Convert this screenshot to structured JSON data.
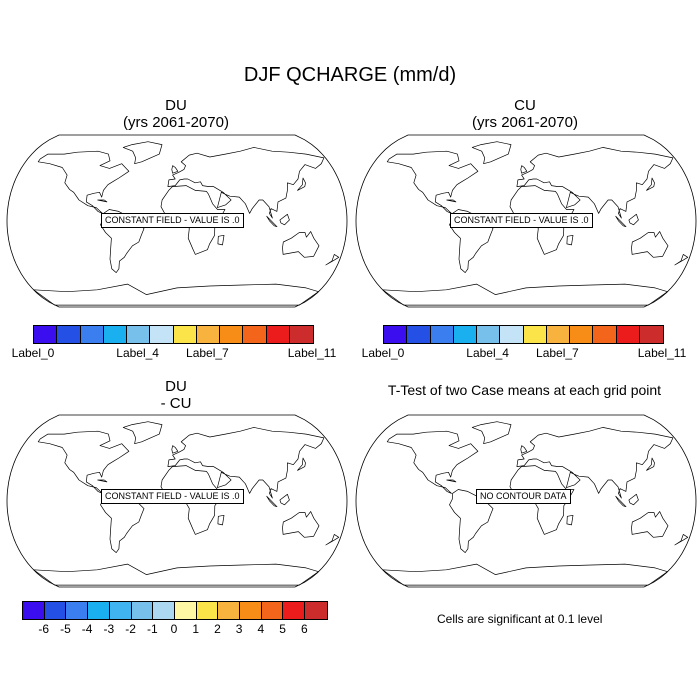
{
  "main_title": "DJF QCHARGE (mm/d)",
  "panels": [
    {
      "title_line1": "DU",
      "title_line2": "(yrs 2061-2070)",
      "field_label": "CONSTANT FIELD - VALUE IS .0"
    },
    {
      "title_line1": "CU",
      "title_line2": "(yrs 2061-2070)",
      "field_label": "CONSTANT FIELD - VALUE IS .0"
    },
    {
      "title_line1": "DU",
      "title_line2": "- CU",
      "field_label": "CONSTANT FIELD - VALUE IS .0"
    },
    {
      "title_line1": "T-Test of two Case means at each grid point",
      "field_label": "NO CONTOUR DATA"
    }
  ],
  "colorbar_top": {
    "colors": [
      "#3b0ef0",
      "#2450e6",
      "#3b7ef0",
      "#1ab0f0",
      "#78c0ec",
      "#c5e3f7",
      "#fae44a",
      "#f8b23e",
      "#f78d17",
      "#f4651c",
      "#ec1c1c",
      "#cc2c2c"
    ],
    "labels": [
      "Label_0",
      "Label_4",
      "Label_7",
      "Label_11"
    ]
  },
  "colorbar_bottom": {
    "colors": [
      "#3b0ef0",
      "#2450e6",
      "#3b7ef0",
      "#1ab0f0",
      "#40b4f0",
      "#78c0ec",
      "#acd8f2",
      "#fff7a4",
      "#fae44a",
      "#f8b23e",
      "#f78d17",
      "#f4651c",
      "#ec1c1c",
      "#cc2c2c"
    ],
    "labels": [
      "-6",
      "-5",
      "-4",
      "-3",
      "-2",
      "-1",
      "0",
      "1",
      "2",
      "3",
      "4",
      "5",
      "6"
    ]
  },
  "significance_note": "Cells are significant at 0.1 level"
}
